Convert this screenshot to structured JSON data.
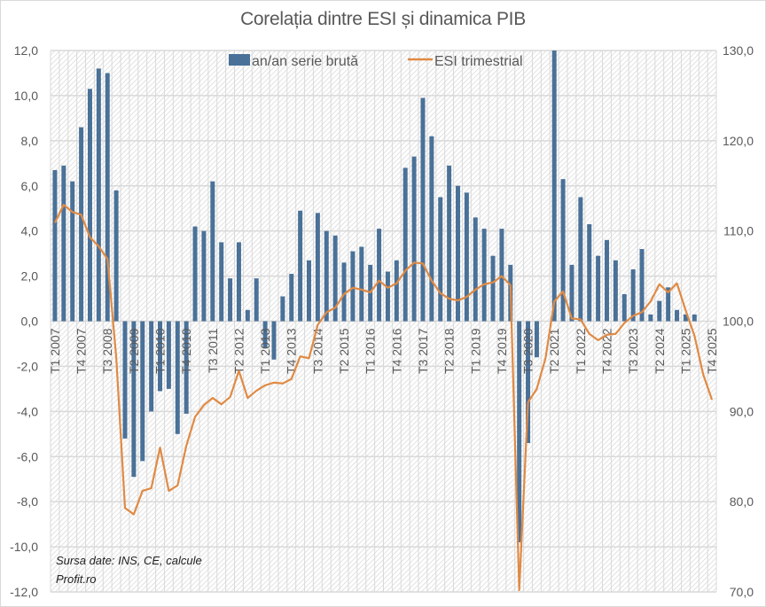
{
  "chart_data": {
    "type": "bar+line",
    "title": "Corelația dintre ESI și dinamica PIB",
    "xlabel": "",
    "ylabel_left": "",
    "ylabel_right": "",
    "y_left_lim": [
      -12,
      12
    ],
    "y_left_ticks": [
      "12,0",
      "10,0",
      "8,0",
      "6,0",
      "4,0",
      "2,0",
      "0,0",
      "-2,0",
      "-4,0",
      "-6,0",
      "-8,0",
      "-10,0",
      "-12,0"
    ],
    "y_left_tick_values": [
      12,
      10,
      8,
      6,
      4,
      2,
      0,
      -2,
      -4,
      -6,
      -8,
      -10,
      -12
    ],
    "y_right_lim": [
      70,
      130
    ],
    "y_right_ticks": [
      "130,0",
      "120,0",
      "110,0",
      "100,0",
      "90,0",
      "80,0",
      "70,0"
    ],
    "y_right_tick_values": [
      130,
      120,
      110,
      100,
      90,
      80,
      70
    ],
    "grid": true,
    "legend_position": "top-center",
    "categories": [
      "T1 2007",
      "T2 2007",
      "T3 2007",
      "T4 2007",
      "T1 2008",
      "T2 2008",
      "T3 2008",
      "T4 2008",
      "T1 2009",
      "T2 2009",
      "T3 2009",
      "T4 2009",
      "T1 2010",
      "T2 2010",
      "T3 2010",
      "T4 2010",
      "T1 2011",
      "T2 2011",
      "T3 2011",
      "T4 2011",
      "T1 2012",
      "T2 2012",
      "T3 2012",
      "T4 2012",
      "T1 2013",
      "T2 2013",
      "T3 2013",
      "T4 2013",
      "T1 2014",
      "T2 2014",
      "T3 2014",
      "T4 2014",
      "T1 2015",
      "T2 2015",
      "T3 2015",
      "T4 2015",
      "T1 2016",
      "T2 2016",
      "T3 2016",
      "T4 2016",
      "T1 2017",
      "T2 2017",
      "T3 2017",
      "T4 2017",
      "T1 2018",
      "T2 2018",
      "T3 2018",
      "T4 2018",
      "T1 2019",
      "T2 2019",
      "T3 2019",
      "T4 2019",
      "T1 2020",
      "T2 2020",
      "T3 2020",
      "T4 2020",
      "T1 2021",
      "T2 2021",
      "T3 2021",
      "T4 2021",
      "T1 2022",
      "T2 2022",
      "T3 2022",
      "T4 2022",
      "T1 2023",
      "T2 2023",
      "T3 2023",
      "T4 2023",
      "T1 2024",
      "T2 2024",
      "T3 2024",
      "T4 2024",
      "T1 2025",
      "T2 2025",
      "T3 2025",
      "T4 2025"
    ],
    "x_tick_labels": [
      "T1 2007",
      "T4 2007",
      "T3 2008",
      "T2 2009",
      "T1 2010",
      "T4 2010",
      "T3 2011",
      "T2 2012",
      "T1 2013",
      "T4 2013",
      "T3 2014",
      "T2 2015",
      "T1 2016",
      "T4 2016",
      "T3 2017",
      "T2 2018",
      "T1 2019",
      "T4 2019",
      "T3 2020",
      "T2 2021",
      "T1 2022",
      "T4 2022",
      "T3 2023",
      "T2 2024",
      "T1 2025",
      "T4 2025"
    ],
    "series": [
      {
        "name": "an/an serie brută",
        "type": "bar",
        "axis": "left",
        "color": "#4a7198",
        "values": [
          6.7,
          6.9,
          6.2,
          8.6,
          10.3,
          11.2,
          11.0,
          5.8,
          -5.2,
          -6.9,
          -6.2,
          -4.0,
          -3.1,
          -3.0,
          -5.0,
          -4.1,
          4.2,
          4.0,
          6.2,
          3.5,
          1.9,
          3.5,
          0.5,
          1.9,
          -1.2,
          -1.7,
          1.1,
          2.1,
          4.9,
          2.7,
          4.8,
          4.0,
          3.8,
          2.6,
          3.1,
          3.3,
          2.5,
          4.1,
          2.2,
          2.7,
          6.8,
          7.3,
          9.9,
          8.2,
          5.5,
          6.9,
          6.0,
          5.7,
          4.6,
          4.1,
          2.9,
          4.1,
          2.5,
          -9.8,
          -5.4,
          -1.6,
          0.0,
          13.9,
          6.3,
          2.5,
          5.5,
          4.3,
          2.9,
          3.6,
          2.7,
          1.2,
          2.3,
          3.2,
          0.3,
          0.9,
          1.5,
          0.5,
          0.3,
          0.3,
          null,
          null
        ]
      },
      {
        "name": "ESI trimestrial",
        "type": "line",
        "axis": "right",
        "color": "#e08a44",
        "values": [
          110.9,
          112.9,
          112.1,
          111.8,
          109.3,
          108.3,
          106.9,
          96.0,
          79.3,
          78.6,
          81.2,
          81.5,
          86.0,
          81.2,
          81.8,
          86.2,
          89.4,
          90.7,
          91.5,
          90.8,
          91.6,
          94.5,
          91.5,
          92.3,
          92.9,
          93.2,
          93.1,
          93.6,
          96.1,
          95.9,
          99.6,
          101.0,
          101.5,
          103.0,
          103.7,
          103.5,
          103.2,
          104.5,
          103.7,
          104.2,
          105.6,
          106.5,
          106.4,
          104.5,
          103.1,
          102.5,
          102.3,
          102.7,
          103.5,
          104.1,
          104.3,
          105.0,
          104.0,
          70.2,
          91.0,
          92.5,
          95.9,
          102.2,
          103.3,
          100.3,
          100.2,
          98.6,
          97.9,
          98.5,
          98.6,
          99.8,
          100.6,
          101.0,
          102.2,
          104.1,
          103.2,
          104.2,
          101.2,
          98.4,
          94.1,
          91.3
        ]
      }
    ],
    "annotations": [
      "Sursa date: INS, CE, calcule",
      "Profit.ro"
    ]
  },
  "legend": {
    "bar_label": "an/an serie brută",
    "line_label": "ESI trimestrial"
  },
  "source_note": {
    "line1": "Sursa date: INS, CE, calcule",
    "line2": "Profit.ro"
  },
  "colors": {
    "bar": "#4a7198",
    "line": "#e08a44",
    "grid": "#d9d9d9",
    "text": "#595959"
  }
}
